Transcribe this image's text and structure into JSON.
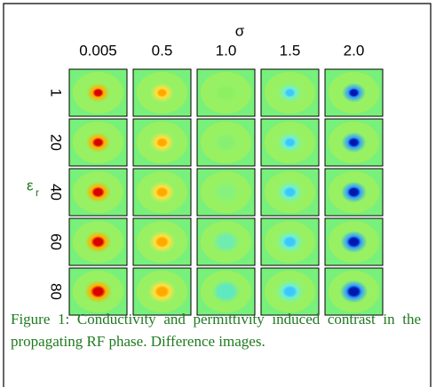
{
  "figure": {
    "sigma_label": "σ",
    "columns": [
      "0.005",
      "0.5",
      "1.0",
      "1.5",
      "2.0"
    ],
    "epsilon_label": "ε",
    "epsilon_subscript": "r",
    "rows": [
      "1",
      "20",
      "40",
      "60",
      "80"
    ],
    "caption": "Figure 1: Conductivity and permittivity induced contrast in the propagating RF phase. Difference images."
  }
}
